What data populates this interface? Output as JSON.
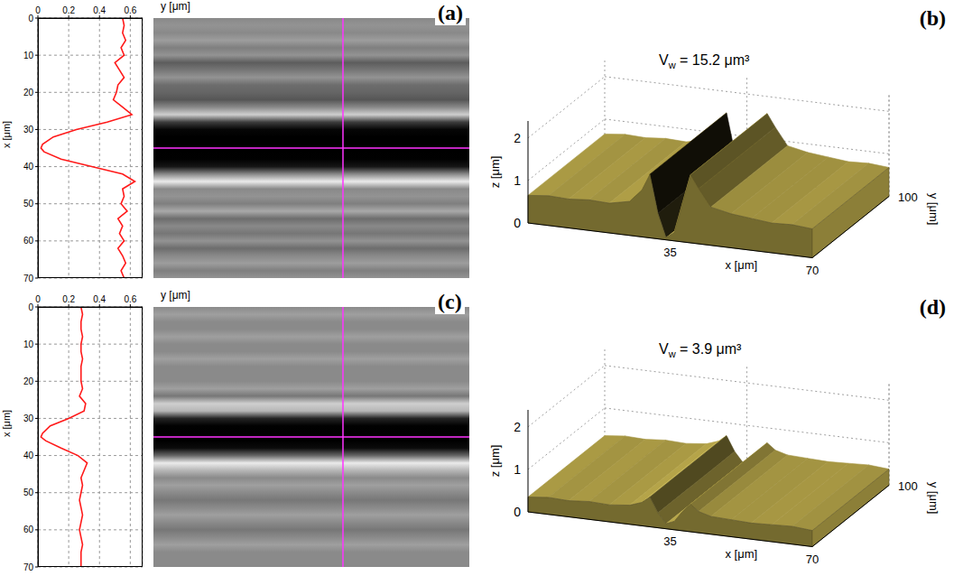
{
  "chart_data": [
    {
      "type": "line",
      "title": "(a)",
      "orientation": "horizontal",
      "xlabel": "x [μm]",
      "ylabel": "y [μm]",
      "x": [
        0,
        2,
        4,
        6,
        8,
        10,
        12,
        14,
        16,
        18,
        20,
        22,
        24,
        26,
        28,
        30,
        32,
        34,
        35,
        36,
        38,
        40,
        42,
        44,
        46,
        48,
        50,
        52,
        54,
        56,
        58,
        60,
        62,
        64,
        66,
        68,
        70
      ],
      "values": [
        0.55,
        0.56,
        0.55,
        0.57,
        0.54,
        0.56,
        0.5,
        0.53,
        0.56,
        0.52,
        0.51,
        0.49,
        0.55,
        0.61,
        0.45,
        0.25,
        0.1,
        0.03,
        0.02,
        0.04,
        0.15,
        0.35,
        0.55,
        0.63,
        0.55,
        0.56,
        0.54,
        0.58,
        0.52,
        0.55,
        0.53,
        0.56,
        0.52,
        0.55,
        0.57,
        0.54,
        0.56
      ],
      "xlim": [
        0,
        70
      ],
      "xticks": [
        0,
        10,
        20,
        30,
        40,
        50,
        60,
        70
      ],
      "ylim": [
        0,
        0.68
      ],
      "yticks": [
        0,
        0.2,
        0.4,
        0.6
      ],
      "color": "#ff1a1a",
      "grid": true
    },
    {
      "type": "surface",
      "title": "(b)",
      "annotation": {
        "main": "V",
        "subscript": "w",
        "rest": " = 15.2 μm³"
      },
      "xlabel": "x [μm]",
      "ylabel": "y [μm]",
      "zlabel": "z [μm]",
      "x": [
        0,
        5,
        10,
        15,
        20,
        25,
        28,
        30,
        32,
        34,
        36,
        38,
        40,
        42,
        45,
        50,
        55,
        60,
        65,
        70
      ],
      "z": [
        0.65,
        0.7,
        0.68,
        0.72,
        0.7,
        0.8,
        1.1,
        1.5,
        0.6,
        0.05,
        0.2,
        0.9,
        1.6,
        1.3,
        0.9,
        0.8,
        0.75,
        0.7,
        0.72,
        0.68
      ],
      "xlim": [
        0,
        70
      ],
      "xticks": [
        35,
        70
      ],
      "ylim": [
        0,
        100
      ],
      "yticks": [
        100
      ],
      "zlim": [
        0,
        2.4
      ],
      "zticks": [
        0,
        1,
        2
      ],
      "color": "#c2b04e",
      "grid": true
    },
    {
      "type": "line",
      "title": "(c)",
      "orientation": "horizontal",
      "xlabel": "x [μm]",
      "ylabel": "y [μm]",
      "x": [
        0,
        2,
        4,
        6,
        8,
        10,
        12,
        14,
        16,
        18,
        20,
        22,
        24,
        26,
        28,
        30,
        32,
        34,
        35,
        36,
        38,
        40,
        42,
        44,
        46,
        48,
        50,
        52,
        54,
        56,
        58,
        60,
        62,
        64,
        66,
        68,
        70
      ],
      "values": [
        0.28,
        0.29,
        0.28,
        0.28,
        0.29,
        0.28,
        0.28,
        0.29,
        0.28,
        0.28,
        0.28,
        0.29,
        0.27,
        0.31,
        0.3,
        0.2,
        0.08,
        0.03,
        0.02,
        0.05,
        0.15,
        0.26,
        0.32,
        0.3,
        0.28,
        0.29,
        0.28,
        0.27,
        0.28,
        0.29,
        0.28,
        0.27,
        0.28,
        0.29,
        0.28,
        0.28,
        0.28
      ],
      "xlim": [
        0,
        70
      ],
      "xticks": [
        0,
        10,
        20,
        30,
        40,
        50,
        60,
        70
      ],
      "ylim": [
        0,
        0.68
      ],
      "yticks": [
        0,
        0.2,
        0.4,
        0.6
      ],
      "color": "#ff1a1a",
      "grid": true
    },
    {
      "type": "surface",
      "title": "(d)",
      "annotation": {
        "main": "V",
        "subscript": "w",
        "rest": " = 3.9 μm³"
      },
      "xlabel": "x [μm]",
      "ylabel": "y [μm]",
      "zlabel": "z [μm]",
      "x": [
        0,
        5,
        10,
        15,
        20,
        25,
        28,
        30,
        32,
        34,
        36,
        38,
        40,
        42,
        45,
        50,
        55,
        60,
        65,
        70
      ],
      "z": [
        0.35,
        0.4,
        0.38,
        0.42,
        0.4,
        0.45,
        0.55,
        0.7,
        0.35,
        0.12,
        0.2,
        0.45,
        0.65,
        0.5,
        0.42,
        0.4,
        0.38,
        0.4,
        0.42,
        0.38
      ],
      "xlim": [
        0,
        70
      ],
      "xticks": [
        35,
        70
      ],
      "ylim": [
        0,
        100
      ],
      "yticks": [
        100
      ],
      "zlim": [
        0,
        2.4
      ],
      "zticks": [
        0,
        1,
        2
      ],
      "color": "#c2b04e",
      "grid": true
    }
  ]
}
